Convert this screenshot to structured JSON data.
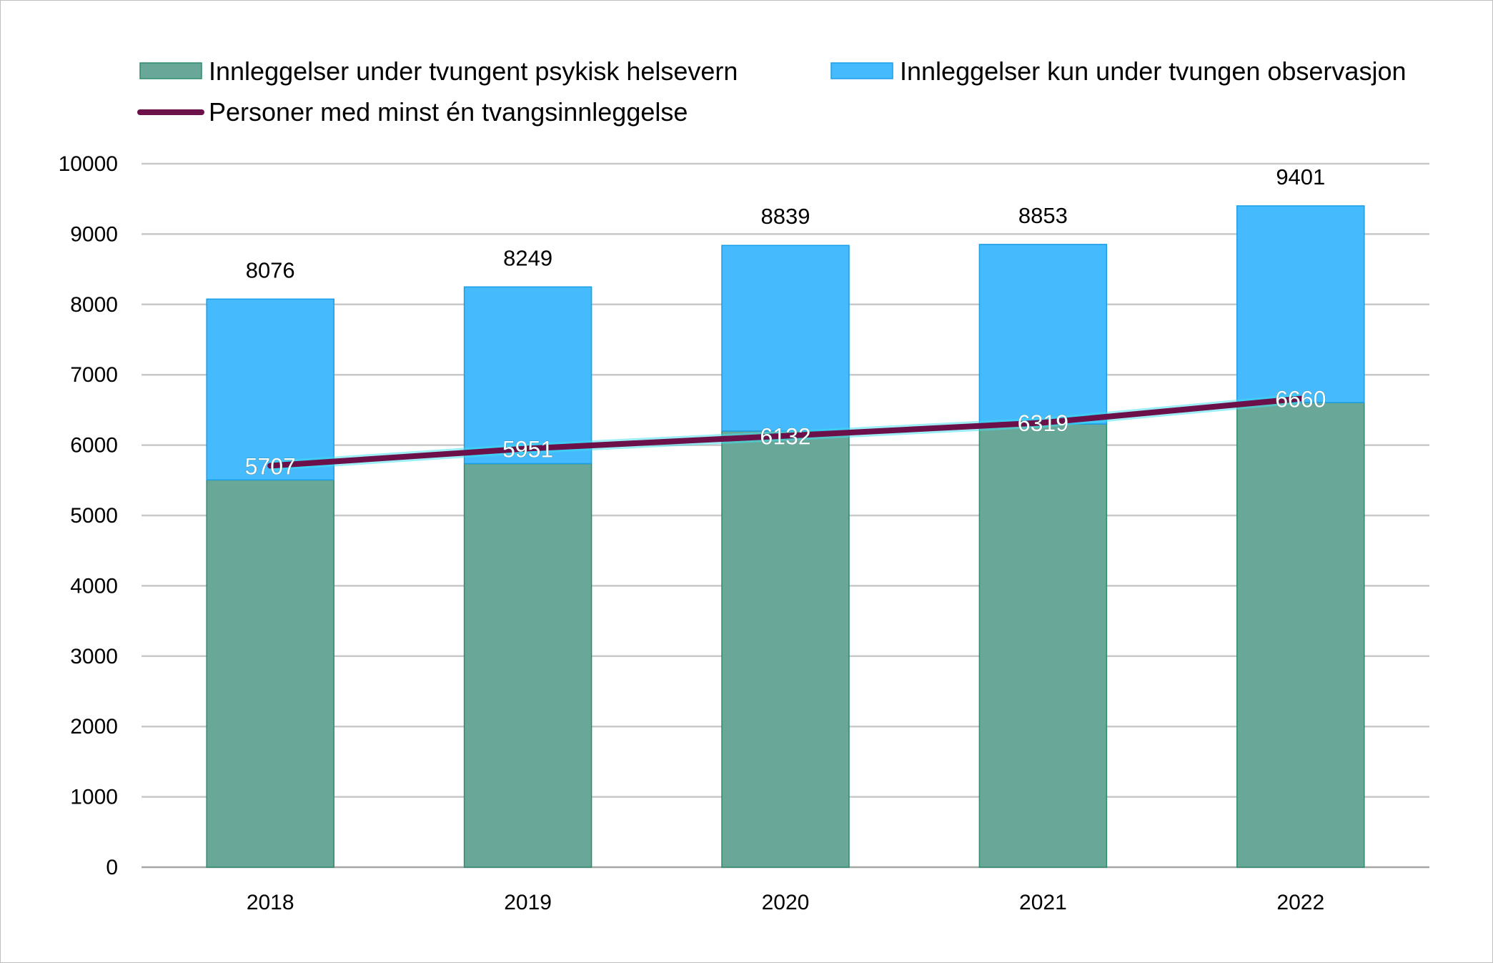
{
  "chart_data": {
    "type": "bar",
    "stacked": true,
    "categories": [
      "2018",
      "2019",
      "2020",
      "2021",
      "2022"
    ],
    "series": [
      {
        "name": "Innleggelser under tvungent psykisk helsevern",
        "type": "bar",
        "color": "#69a898",
        "values": [
          5505,
          5737,
          6200,
          6300,
          6606
        ]
      },
      {
        "name": "Innleggelser kun under tvungen observasjon",
        "type": "bar",
        "color": "#45bbfd",
        "values": [
          2571,
          2512,
          2639,
          2553,
          2795
        ]
      },
      {
        "name": "Personer med minst én tvangsinnleggelse",
        "type": "line",
        "color": "#6b1048",
        "values": [
          5707,
          5951,
          6132,
          6319,
          6660
        ]
      }
    ],
    "totals": [
      8076,
      8249,
      8839,
      8853,
      9401
    ],
    "ylim": [
      0,
      10000
    ],
    "yticks": [
      0,
      1000,
      2000,
      3000,
      4000,
      5000,
      6000,
      7000,
      8000,
      9000,
      10000
    ],
    "grid": true,
    "legend_position": "top",
    "title": "",
    "xlabel": "",
    "ylabel": ""
  }
}
